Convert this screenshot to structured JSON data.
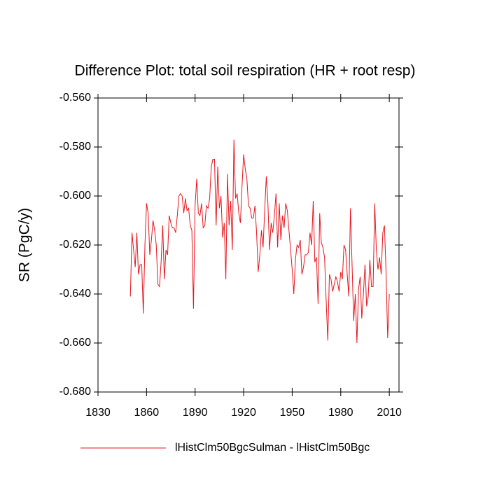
{
  "chart_data": {
    "type": "line",
    "title": "Difference Plot: total soil respiration (HR + root resp)",
    "y_label": "SR  (PgC/y)",
    "x": [
      1850,
      1851,
      1852,
      1853,
      1854,
      1855,
      1856,
      1857,
      1858,
      1859,
      1860,
      1861,
      1862,
      1863,
      1864,
      1865,
      1866,
      1867,
      1868,
      1869,
      1870,
      1871,
      1872,
      1873,
      1874,
      1875,
      1876,
      1877,
      1878,
      1879,
      1880,
      1881,
      1882,
      1883,
      1884,
      1885,
      1886,
      1887,
      1888,
      1889,
      1890,
      1891,
      1892,
      1893,
      1894,
      1895,
      1896,
      1897,
      1898,
      1899,
      1900,
      1901,
      1902,
      1903,
      1904,
      1905,
      1906,
      1907,
      1908,
      1909,
      1910,
      1911,
      1912,
      1913,
      1914,
      1915,
      1916,
      1917,
      1918,
      1919,
      1920,
      1921,
      1922,
      1923,
      1924,
      1925,
      1926,
      1927,
      1928,
      1929,
      1930,
      1931,
      1932,
      1933,
      1934,
      1935,
      1936,
      1937,
      1938,
      1939,
      1940,
      1941,
      1942,
      1943,
      1944,
      1945,
      1946,
      1947,
      1948,
      1949,
      1950,
      1951,
      1952,
      1953,
      1954,
      1955,
      1956,
      1957,
      1958,
      1959,
      1960,
      1961,
      1962,
      1963,
      1964,
      1965,
      1966,
      1967,
      1968,
      1969,
      1970,
      1971,
      1972,
      1973,
      1974,
      1975,
      1976,
      1977,
      1978,
      1979,
      1980,
      1981,
      1982,
      1983,
      1984,
      1985,
      1986,
      1987,
      1988,
      1989,
      1990,
      1991,
      1992,
      1993,
      1994,
      1995,
      1996,
      1997,
      1998,
      1999,
      2000,
      2001,
      2002,
      2003,
      2004,
      2005,
      2006,
      2007,
      2008,
      2009,
      2010
    ],
    "series": [
      {
        "name": "lHistClm50BgcSulman - lHistClm50Bgc",
        "color": "#e8141c",
        "values": [
          -0.641,
          -0.615,
          -0.622,
          -0.629,
          -0.615,
          -0.632,
          -0.628,
          -0.628,
          -0.648,
          -0.62,
          -0.603,
          -0.607,
          -0.624,
          -0.618,
          -0.61,
          -0.614,
          -0.62,
          -0.636,
          -0.637,
          -0.627,
          -0.612,
          -0.634,
          -0.622,
          -0.624,
          -0.608,
          -0.611,
          -0.613,
          -0.613,
          -0.615,
          -0.608,
          -0.6,
          -0.599,
          -0.6,
          -0.607,
          -0.601,
          -0.606,
          -0.605,
          -0.612,
          -0.614,
          -0.646,
          -0.604,
          -0.593,
          -0.607,
          -0.608,
          -0.603,
          -0.613,
          -0.612,
          -0.604,
          -0.605,
          -0.601,
          -0.588,
          -0.585,
          -0.585,
          -0.612,
          -0.588,
          -0.605,
          -0.6,
          -0.617,
          -0.611,
          -0.634,
          -0.591,
          -0.612,
          -0.602,
          -0.622,
          -0.577,
          -0.601,
          -0.599,
          -0.607,
          -0.611,
          -0.596,
          -0.583,
          -0.589,
          -0.593,
          -0.604,
          -0.605,
          -0.609,
          -0.609,
          -0.604,
          -0.615,
          -0.631,
          -0.624,
          -0.614,
          -0.621,
          -0.606,
          -0.592,
          -0.603,
          -0.622,
          -0.611,
          -0.615,
          -0.608,
          -0.599,
          -0.621,
          -0.603,
          -0.618,
          -0.608,
          -0.613,
          -0.603,
          -0.606,
          -0.614,
          -0.622,
          -0.63,
          -0.64,
          -0.626,
          -0.62,
          -0.621,
          -0.618,
          -0.632,
          -0.629,
          -0.624,
          -0.624,
          -0.623,
          -0.615,
          -0.62,
          -0.602,
          -0.627,
          -0.625,
          -0.644,
          -0.607,
          -0.619,
          -0.621,
          -0.625,
          -0.643,
          -0.659,
          -0.632,
          -0.634,
          -0.639,
          -0.636,
          -0.633,
          -0.635,
          -0.639,
          -0.631,
          -0.634,
          -0.62,
          -0.622,
          -0.632,
          -0.641,
          -0.605,
          -0.628,
          -0.651,
          -0.64,
          -0.66,
          -0.638,
          -0.633,
          -0.65,
          -0.64,
          -0.628,
          -0.645,
          -0.641,
          -0.626,
          -0.637,
          -0.637,
          -0.603,
          -0.622,
          -0.63,
          -0.625,
          -0.632,
          -0.615,
          -0.612,
          -0.631,
          -0.658,
          -0.64
        ]
      }
    ],
    "xlim": [
      1830,
      2016
    ],
    "xticks": [
      1830,
      1860,
      1890,
      1920,
      1950,
      1980,
      2010
    ],
    "ylim": [
      -0.68,
      -0.56
    ],
    "yticks": [
      {
        "value": -0.68,
        "label": "-0.680"
      },
      {
        "value": -0.66,
        "label": "-0.660"
      },
      {
        "value": -0.64,
        "label": "-0.640"
      },
      {
        "value": -0.62,
        "label": "-0.620"
      },
      {
        "value": -0.6,
        "label": "-0.600"
      },
      {
        "value": -0.58,
        "label": "-0.580"
      },
      {
        "value": -0.56,
        "label": "-0.560"
      }
    ],
    "legend": "bottom"
  }
}
